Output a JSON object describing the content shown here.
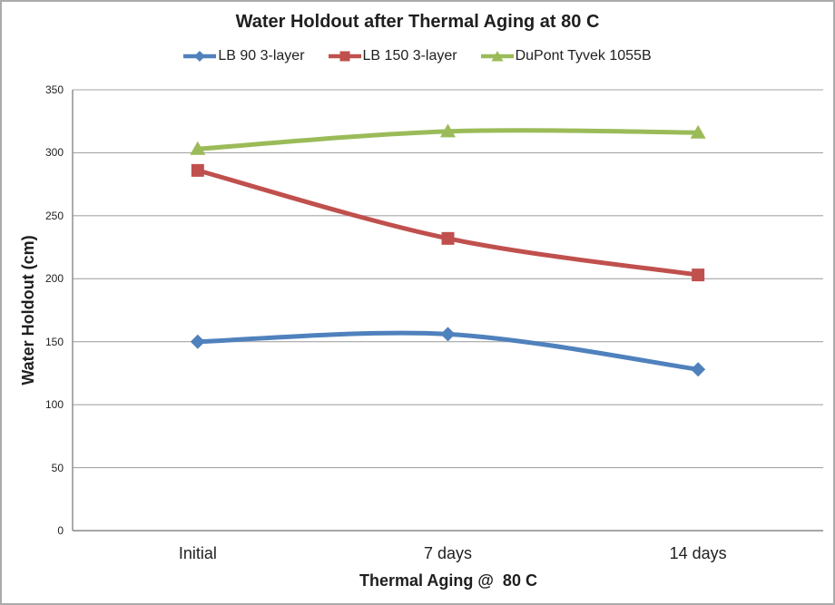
{
  "window": {
    "background": "#FFFFFF",
    "border_color": "#ABABAB"
  },
  "chart_data": {
    "type": "line",
    "title": "Water Holdout after Thermal Aging at 80 C",
    "xlabel": "Thermal Aging @  80 C",
    "ylabel": "Water Holdout (cm)",
    "categories": [
      "Initial",
      "7 days",
      "14 days"
    ],
    "series": [
      {
        "name": "LB 90 3-layer",
        "values": [
          150,
          156,
          128
        ],
        "color": "#4F81BD",
        "marker": "diamond"
      },
      {
        "name": "LB 150 3-layer",
        "values": [
          286,
          232,
          203
        ],
        "color": "#C0504D",
        "marker": "square"
      },
      {
        "name": "DuPont Tyvek 1055B",
        "values": [
          303,
          317,
          316
        ],
        "color": "#9BBB59",
        "marker": "triangle"
      }
    ],
    "ylim": [
      0,
      350
    ],
    "yticks": [
      0,
      50,
      100,
      150,
      200,
      250,
      300,
      350
    ],
    "grid": true,
    "smoothed_lines": true,
    "legend_position": "top",
    "gridline_color": "#A6A6A6",
    "axis_line_color": "#898989",
    "text_color": "#1F1F1F"
  }
}
